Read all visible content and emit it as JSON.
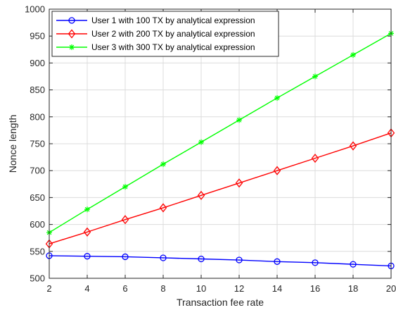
{
  "chart_data": {
    "type": "line",
    "title": "",
    "xlabel": "Transaction fee rate",
    "ylabel": "Nonce length",
    "xlim": [
      2,
      20
    ],
    "ylim": [
      500,
      1000
    ],
    "x_ticks": [
      2,
      4,
      6,
      8,
      10,
      12,
      14,
      16,
      18,
      20
    ],
    "y_ticks": [
      500,
      550,
      600,
      650,
      700,
      750,
      800,
      850,
      900,
      950,
      1000
    ],
    "grid": true,
    "legend_position": "top-left",
    "x": [
      2,
      4,
      6,
      8,
      10,
      12,
      14,
      16,
      18,
      20
    ],
    "series": [
      {
        "name": "User 1 with 100 TX by analytical expression",
        "color": "#0000ff",
        "marker": "circle",
        "values": [
          542,
          541,
          540,
          538,
          536,
          534,
          531,
          529,
          526,
          523
        ]
      },
      {
        "name": "User 2 with 200 TX by analytical expression",
        "color": "#ff0000",
        "marker": "diamond",
        "values": [
          564,
          586,
          609,
          631,
          654,
          677,
          700,
          723,
          746,
          770
        ]
      },
      {
        "name": "User 3 with 300 TX by analytical expression",
        "color": "#00ff00",
        "marker": "asterisk",
        "values": [
          585,
          628,
          670,
          712,
          753,
          794,
          835,
          875,
          915,
          955
        ]
      }
    ]
  }
}
